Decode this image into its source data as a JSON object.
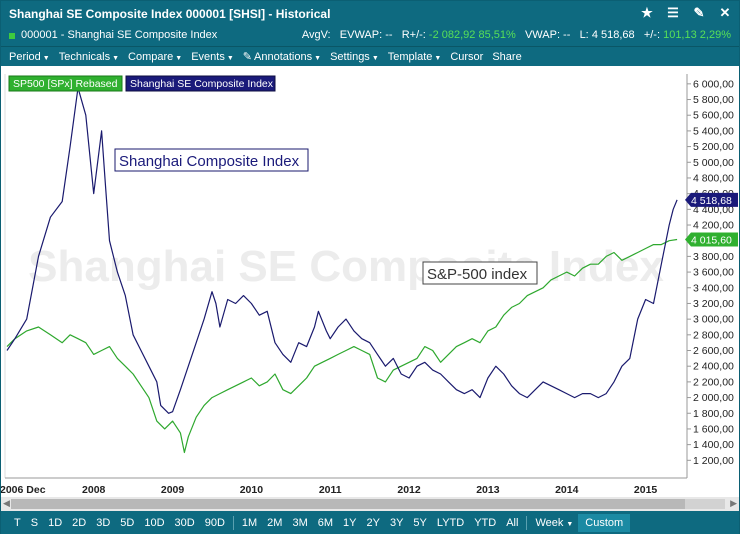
{
  "window": {
    "title": "Shanghai SE Composite Index 000001 [SHSI] - Historical"
  },
  "titlebar_icons": [
    "star-icon",
    "list-icon",
    "tools-icon",
    "close-icon"
  ],
  "infobar": {
    "instrument": "000001 - Shanghai SE Composite Index",
    "avgv": "AvgV:",
    "evwap": "EVWAP: --",
    "r_label": "R+/-:",
    "r_value": "-2 082,92",
    "r_pct": "85,51%",
    "vwap": "VWAP: --",
    "last_label": "L:",
    "last_value": "4 518,68",
    "change_label": "+/-:",
    "change_value": "101,13",
    "change_pct": "2,29%",
    "up_color": "#57e057"
  },
  "menu": [
    "Period",
    "Technicals",
    "Compare",
    "Events",
    "Annotations",
    "Settings",
    "Template",
    "Cursor",
    "Share"
  ],
  "legend": {
    "sp500": "SP500 [SPx] Rebased",
    "shanghai": "Shanghai SE Composite Index"
  },
  "annotations": {
    "shanghai_label": "Shanghai Composite Index",
    "sp_label": "S&P-500 index"
  },
  "watermark": "Shanghai SE Composite Index",
  "price_tags": {
    "shanghai": "4 518,68",
    "sp500": "4 015,60"
  },
  "chart_data": {
    "type": "line",
    "y_ticks": [
      "6 000,00",
      "5 800,00",
      "5 600,00",
      "5 400,00",
      "5 200,00",
      "5 000,00",
      "4 800,00",
      "4 600,00",
      "4 400,00",
      "4 200,00",
      "4 000,00",
      "3 800,00",
      "3 600,00",
      "3 400,00",
      "3 200,00",
      "3 000,00",
      "2 800,00",
      "2 600,00",
      "2 400,00",
      "2 200,00",
      "2 000,00",
      "1 800,00",
      "1 600,00",
      "1 400,00",
      "1 200,00"
    ],
    "y_tick_values": [
      6000,
      5800,
      5600,
      5400,
      5200,
      5000,
      4800,
      4600,
      4400,
      4200,
      4000,
      3800,
      3600,
      3400,
      3200,
      3000,
      2800,
      2600,
      2400,
      2200,
      2000,
      1800,
      1600,
      1400,
      1200
    ],
    "ylim": [
      1000,
      6100
    ],
    "xlim": [
      2006.9,
      2015.5
    ],
    "x_labels": [
      {
        "x": 2007.1,
        "label": "2006 Dec"
      },
      {
        "x": 2008.0,
        "label": "2008"
      },
      {
        "x": 2009.0,
        "label": "2009"
      },
      {
        "x": 2010.0,
        "label": "2010"
      },
      {
        "x": 2011.0,
        "label": "2011"
      },
      {
        "x": 2012.0,
        "label": "2012"
      },
      {
        "x": 2013.0,
        "label": "2013"
      },
      {
        "x": 2014.0,
        "label": "2014"
      },
      {
        "x": 2015.0,
        "label": "2015"
      }
    ],
    "series": [
      {
        "name": "Shanghai SE Composite Index",
        "color": "#1a1a6e",
        "x": [
          2006.9,
          2007.0,
          2007.15,
          2007.3,
          2007.45,
          2007.6,
          2007.7,
          2007.8,
          2007.9,
          2008.0,
          2008.1,
          2008.15,
          2008.2,
          2008.3,
          2008.4,
          2008.5,
          2008.6,
          2008.7,
          2008.8,
          2008.85,
          2008.95,
          2009.0,
          2009.1,
          2009.2,
          2009.3,
          2009.4,
          2009.5,
          2009.55,
          2009.6,
          2009.7,
          2009.8,
          2009.9,
          2010.0,
          2010.1,
          2010.2,
          2010.3,
          2010.4,
          2010.5,
          2010.6,
          2010.7,
          2010.8,
          2010.85,
          2010.95,
          2011.0,
          2011.1,
          2011.2,
          2011.3,
          2011.4,
          2011.5,
          2011.6,
          2011.7,
          2011.8,
          2011.9,
          2012.0,
          2012.1,
          2012.2,
          2012.3,
          2012.4,
          2012.5,
          2012.6,
          2012.7,
          2012.8,
          2012.9,
          2013.0,
          2013.1,
          2013.2,
          2013.3,
          2013.4,
          2013.5,
          2013.6,
          2013.7,
          2013.8,
          2013.9,
          2014.0,
          2014.1,
          2014.2,
          2014.3,
          2014.4,
          2014.5,
          2014.6,
          2014.7,
          2014.8,
          2014.9,
          2015.0,
          2015.1,
          2015.2,
          2015.3,
          2015.35,
          2015.4
        ],
        "values": [
          2600,
          2750,
          3000,
          3800,
          4300,
          4500,
          5200,
          5950,
          5600,
          4600,
          5400,
          4700,
          4000,
          3600,
          3300,
          2800,
          2600,
          2400,
          2200,
          1900,
          1800,
          1820,
          2100,
          2400,
          2700,
          3000,
          3350,
          3200,
          2900,
          3250,
          3200,
          3300,
          3200,
          3050,
          3100,
          2700,
          2550,
          2450,
          2700,
          2650,
          2900,
          3100,
          2850,
          2750,
          2900,
          3000,
          2850,
          2750,
          2700,
          2550,
          2400,
          2500,
          2300,
          2250,
          2400,
          2450,
          2350,
          2300,
          2200,
          2100,
          2050,
          2100,
          2000,
          2250,
          2400,
          2300,
          2150,
          2050,
          2000,
          2100,
          2200,
          2150,
          2100,
          2050,
          2000,
          2050,
          2050,
          2000,
          2050,
          2200,
          2400,
          2500,
          3000,
          3250,
          3200,
          3700,
          4200,
          4400,
          4520
        ]
      },
      {
        "name": "SP500 [SPx] Rebased",
        "color": "#2ea82e",
        "x": [
          2006.9,
          2007.0,
          2007.15,
          2007.3,
          2007.45,
          2007.6,
          2007.7,
          2007.8,
          2007.9,
          2008.0,
          2008.1,
          2008.2,
          2008.3,
          2008.4,
          2008.5,
          2008.6,
          2008.7,
          2008.8,
          2008.9,
          2009.0,
          2009.1,
          2009.15,
          2009.2,
          2009.3,
          2009.4,
          2009.5,
          2009.6,
          2009.7,
          2009.8,
          2009.9,
          2010.0,
          2010.1,
          2010.2,
          2010.3,
          2010.4,
          2010.5,
          2010.6,
          2010.7,
          2010.8,
          2010.9,
          2011.0,
          2011.1,
          2011.2,
          2011.3,
          2011.4,
          2011.5,
          2011.6,
          2011.7,
          2011.8,
          2011.9,
          2012.0,
          2012.1,
          2012.2,
          2012.3,
          2012.4,
          2012.5,
          2012.6,
          2012.7,
          2012.8,
          2012.9,
          2013.0,
          2013.1,
          2013.2,
          2013.3,
          2013.4,
          2013.5,
          2013.6,
          2013.7,
          2013.8,
          2013.9,
          2014.0,
          2014.1,
          2014.2,
          2014.3,
          2014.4,
          2014.5,
          2014.6,
          2014.7,
          2014.8,
          2014.9,
          2015.0,
          2015.1,
          2015.2,
          2015.3,
          2015.4
        ],
        "values": [
          2650,
          2750,
          2850,
          2900,
          2800,
          2700,
          2800,
          2750,
          2700,
          2550,
          2600,
          2650,
          2500,
          2400,
          2300,
          2150,
          2000,
          1700,
          1600,
          1700,
          1550,
          1300,
          1500,
          1750,
          1900,
          2000,
          2050,
          2100,
          2150,
          2200,
          2250,
          2150,
          2200,
          2300,
          2100,
          2050,
          2150,
          2250,
          2400,
          2450,
          2500,
          2550,
          2600,
          2650,
          2600,
          2550,
          2250,
          2200,
          2350,
          2400,
          2450,
          2500,
          2650,
          2600,
          2450,
          2550,
          2650,
          2700,
          2750,
          2700,
          2850,
          2900,
          3050,
          3150,
          3200,
          3300,
          3350,
          3400,
          3500,
          3550,
          3600,
          3550,
          3650,
          3700,
          3700,
          3800,
          3850,
          3750,
          3800,
          3850,
          3900,
          3950,
          3950,
          4000,
          4015
        ]
      }
    ]
  },
  "bottom_periods": [
    "T",
    "S",
    "1D",
    "2D",
    "3D",
    "5D",
    "10D",
    "30D",
    "90D"
  ],
  "bottom_ranges": [
    "1M",
    "2M",
    "3M",
    "6M",
    "1Y",
    "2Y",
    "3Y",
    "5Y",
    "LYTD",
    "YTD",
    "All"
  ],
  "bottom_interval": "Week",
  "bottom_custom": "Custom"
}
